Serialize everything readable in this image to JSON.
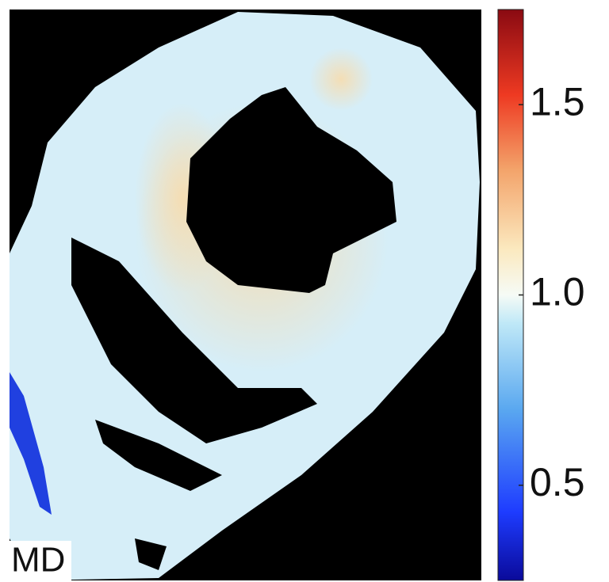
{
  "chart_data": {
    "type": "colormap",
    "label": "MD",
    "clim": [
      0.25,
      1.75
    ],
    "ticks": [
      0.5,
      {
        "value": 1,
        "label": "1.0"
      },
      1.5
    ]
  }
}
